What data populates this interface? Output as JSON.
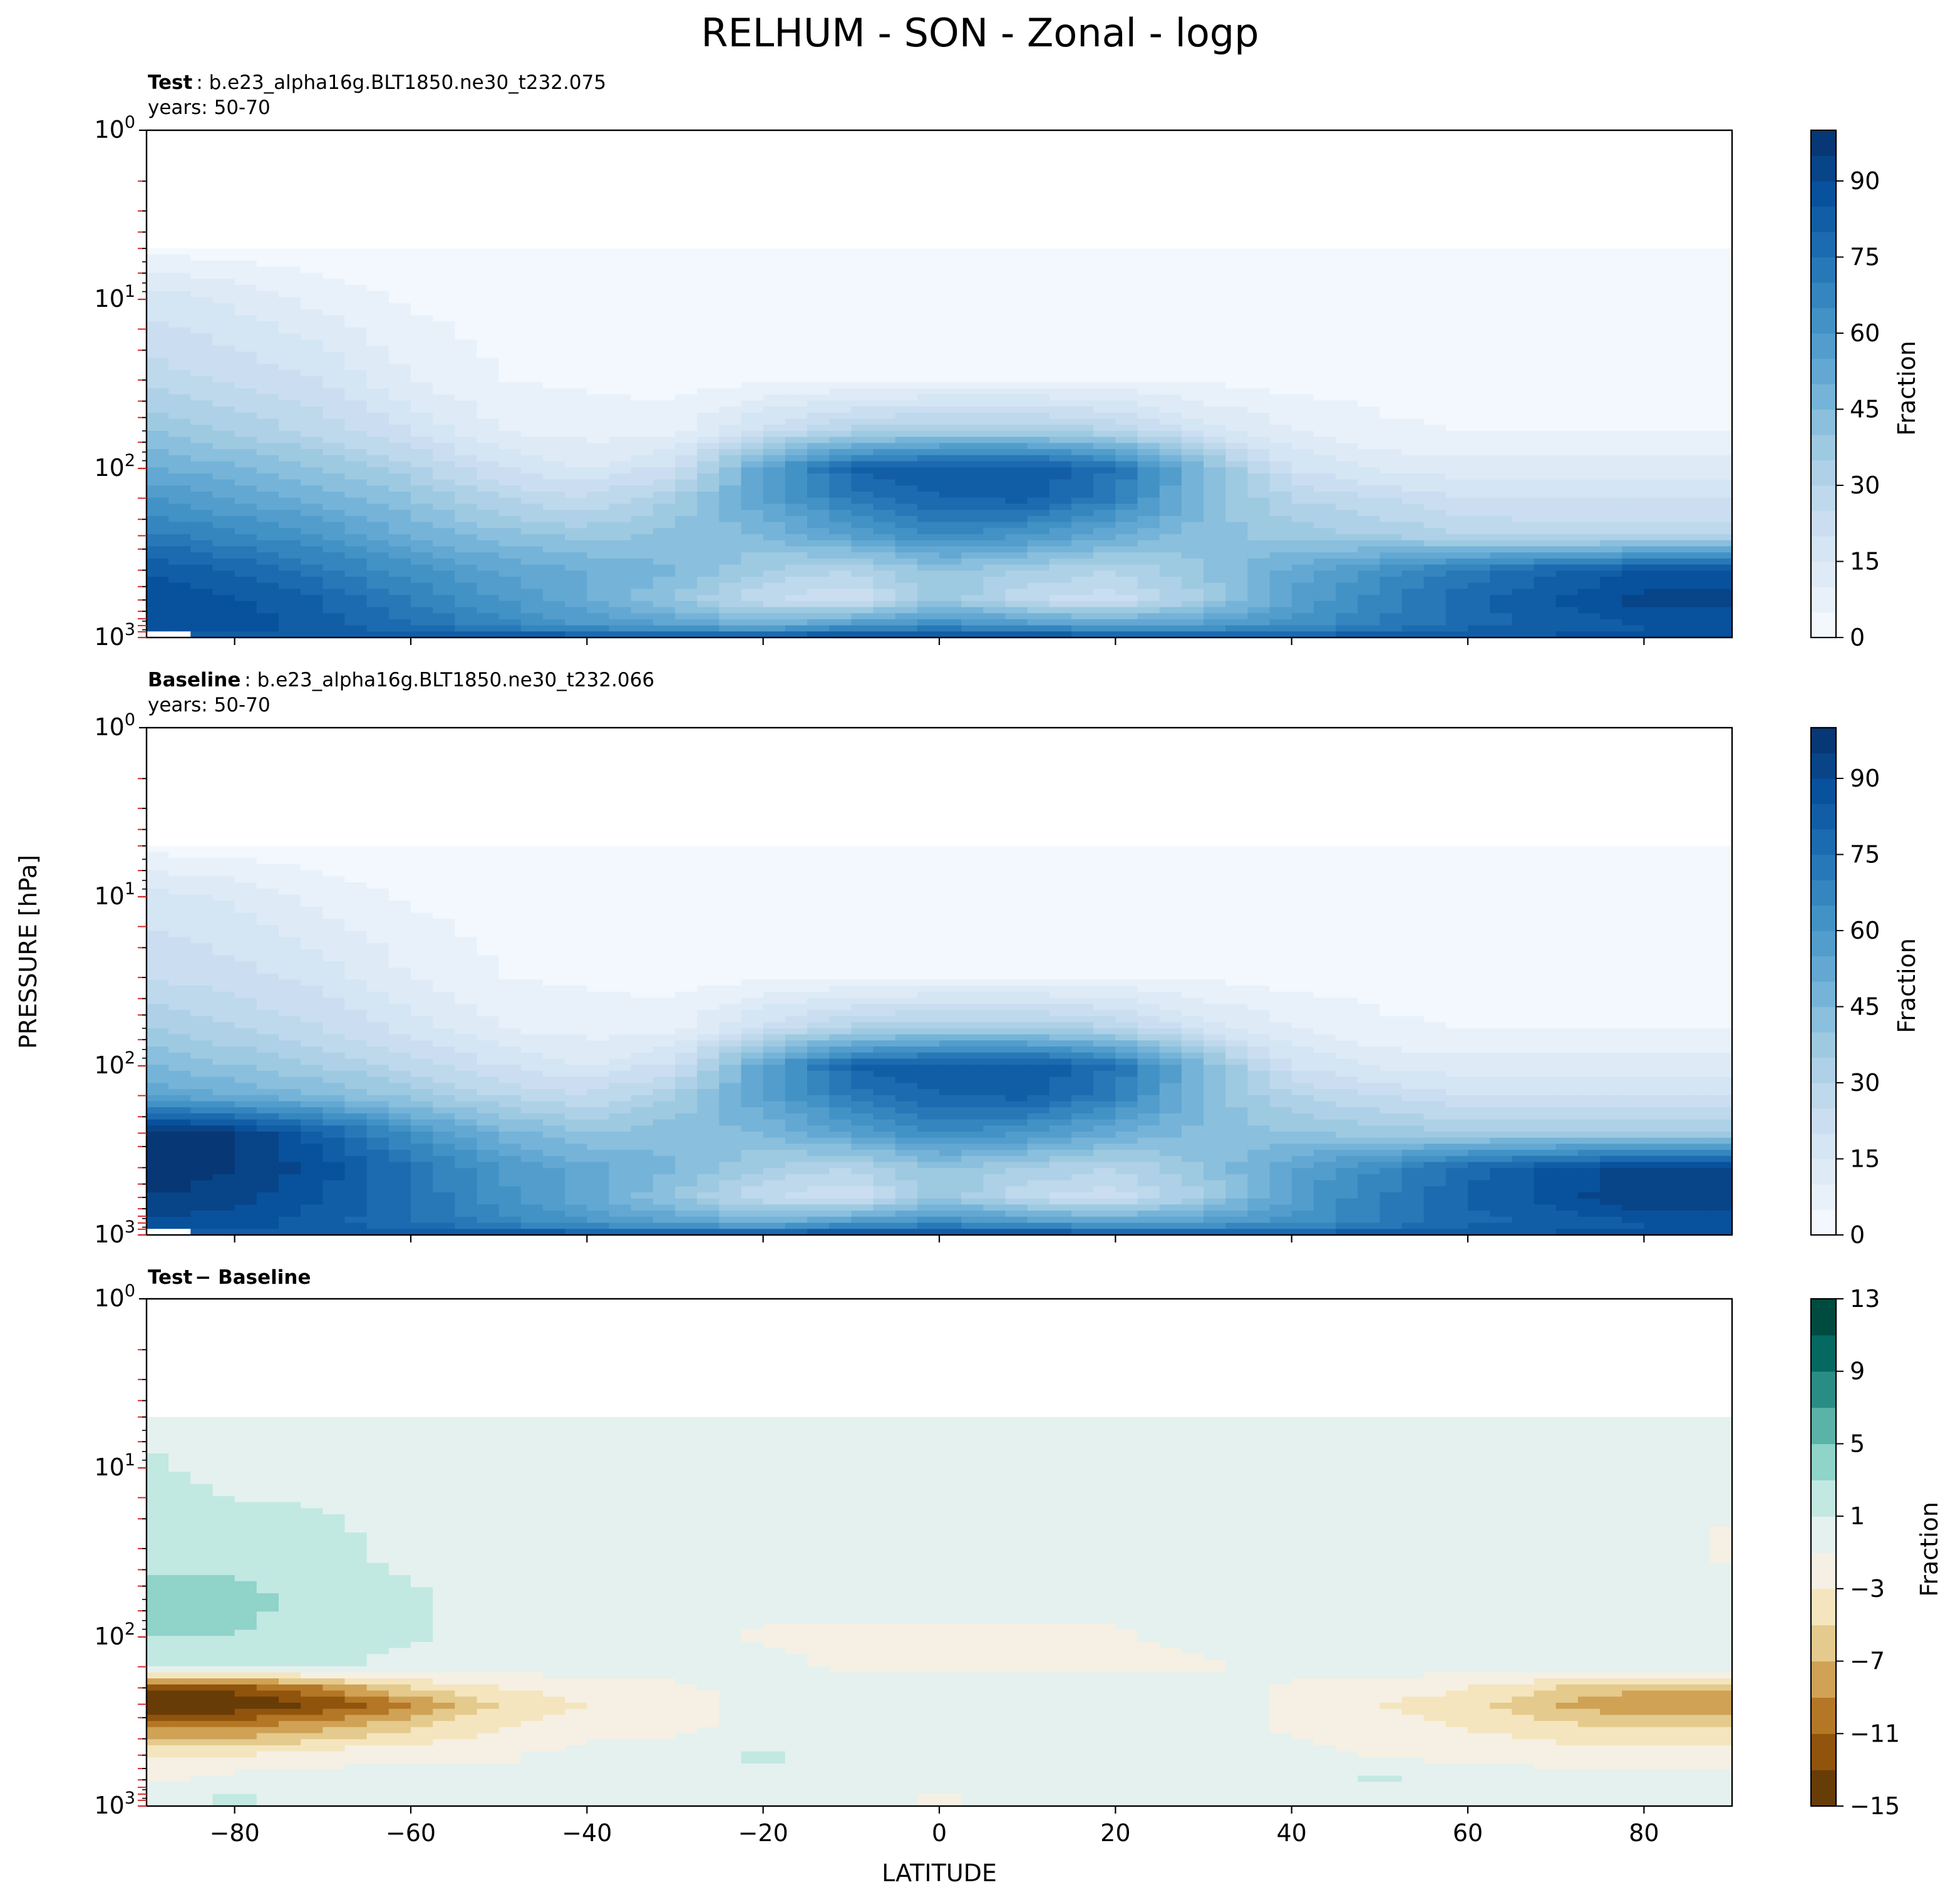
{
  "figure": {
    "title": "RELHUM - SON - Zonal - logp",
    "ylabel": "PRESSURE [hPa]",
    "xlabel": "LATITUDE"
  },
  "panels": [
    {
      "title_bold": "Test",
      "title_rest": ": b.e23_alpha16g.BLT1850.ne30_t232.075",
      "subtitle": "years: 50-70",
      "colorbar_label": "Fraction",
      "colorbar_ticks": [
        "0",
        "15",
        "30",
        "45",
        "60",
        "75",
        "90"
      ]
    },
    {
      "title_bold": "Baseline",
      "title_rest": ": b.e23_alpha16g.BLT1850.ne30_t232.066",
      "subtitle": "years: 50-70",
      "colorbar_label": "Fraction",
      "colorbar_ticks": [
        "0",
        "15",
        "30",
        "45",
        "60",
        "75",
        "90"
      ]
    },
    {
      "title_bold": "Test",
      "title_rest": "− Baseline",
      "subtitle": "",
      "colorbar_label": "Fraction",
      "colorbar_ticks": [
        "13",
        "9",
        "5",
        "1",
        "−3",
        "−7",
        "−11",
        "−15"
      ]
    }
  ],
  "chart_data": [
    {
      "type": "heatmap",
      "name": "Test",
      "x_axis": {
        "range": [
          -90,
          90
        ],
        "ticks": [
          -80,
          -60,
          -40,
          -20,
          0,
          20,
          40,
          60,
          80
        ],
        "tick_labels": [
          "−80",
          "−60",
          "−40",
          "−20",
          "0",
          "20",
          "40",
          "60",
          "80"
        ]
      },
      "y_axis": {
        "scale": "log",
        "inverted": true,
        "range_hpa": [
          1,
          1000
        ],
        "tick_labels": [
          "10^0",
          "10^1",
          "10^2",
          "10^3"
        ]
      },
      "colormap": "Blues",
      "levels": [
        0,
        5,
        10,
        15,
        20,
        25,
        30,
        35,
        40,
        45,
        50,
        55,
        60,
        65,
        70,
        75,
        80,
        85,
        90,
        95,
        100
      ],
      "latitudes": [
        -90,
        -80,
        -70,
        -60,
        -50,
        -40,
        -30,
        -20,
        -10,
        0,
        10,
        20,
        30,
        40,
        50,
        60,
        70,
        80,
        90
      ],
      "profiles": [
        {
          "pressure_hpa": 5,
          "values": [
            3,
            2,
            2,
            2,
            2,
            2,
            2,
            2,
            2,
            2,
            2,
            2,
            2,
            2,
            2,
            2,
            2,
            2,
            2
          ]
        },
        {
          "pressure_hpa": 10,
          "values": [
            18,
            14,
            8,
            4,
            3,
            2,
            2,
            2,
            2,
            2,
            2,
            2,
            2,
            2,
            2,
            2,
            2,
            2,
            2
          ]
        },
        {
          "pressure_hpa": 30,
          "values": [
            28,
            24,
            20,
            10,
            5,
            4,
            3,
            4,
            5,
            5,
            5,
            5,
            4,
            3,
            3,
            2,
            2,
            2,
            2
          ]
        },
        {
          "pressure_hpa": 60,
          "values": [
            40,
            34,
            28,
            20,
            10,
            8,
            8,
            22,
            32,
            35,
            35,
            30,
            18,
            10,
            6,
            5,
            5,
            5,
            5
          ]
        },
        {
          "pressure_hpa": 100,
          "values": [
            50,
            46,
            40,
            32,
            20,
            15,
            22,
            55,
            80,
            85,
            85,
            75,
            45,
            20,
            14,
            12,
            12,
            12,
            12
          ]
        },
        {
          "pressure_hpa": 150,
          "values": [
            60,
            55,
            48,
            40,
            30,
            25,
            35,
            55,
            72,
            80,
            82,
            70,
            45,
            30,
            25,
            20,
            20,
            20,
            20
          ]
        },
        {
          "pressure_hpa": 250,
          "values": [
            72,
            66,
            60,
            50,
            42,
            38,
            42,
            45,
            55,
            65,
            60,
            50,
            42,
            38,
            35,
            30,
            28,
            28,
            28
          ]
        },
        {
          "pressure_hpa": 400,
          "values": [
            85,
            80,
            72,
            62,
            55,
            50,
            45,
            35,
            30,
            40,
            35,
            30,
            40,
            52,
            62,
            72,
            80,
            85,
            85
          ]
        },
        {
          "pressure_hpa": 600,
          "values": [
            90,
            86,
            80,
            70,
            60,
            50,
            40,
            25,
            20,
            40,
            25,
            22,
            35,
            55,
            68,
            78,
            85,
            92,
            92
          ]
        },
        {
          "pressure_hpa": 850,
          "values": [
            85,
            88,
            82,
            75,
            68,
            60,
            55,
            50,
            60,
            65,
            60,
            55,
            58,
            62,
            70,
            78,
            82,
            85,
            85
          ]
        },
        {
          "pressure_hpa": 1000,
          "values": [
            null,
            82,
            85,
            86,
            86,
            86,
            86,
            85,
            90,
            92,
            90,
            86,
            85,
            85,
            85,
            86,
            86,
            86,
            86
          ]
        }
      ]
    },
    {
      "type": "heatmap",
      "name": "Baseline",
      "x_axis": {
        "range": [
          -90,
          90
        ],
        "ticks": [
          -80,
          -60,
          -40,
          -20,
          0,
          20,
          40,
          60,
          80
        ],
        "tick_labels": [
          "−80",
          "−60",
          "−40",
          "−20",
          "0",
          "20",
          "40",
          "60",
          "80"
        ]
      },
      "y_axis": {
        "scale": "log",
        "inverted": true,
        "range_hpa": [
          1,
          1000
        ],
        "tick_labels": [
          "10^0",
          "10^1",
          "10^2",
          "10^3"
        ]
      },
      "colormap": "Blues",
      "levels": [
        0,
        5,
        10,
        15,
        20,
        25,
        30,
        35,
        40,
        45,
        50,
        55,
        60,
        65,
        70,
        75,
        80,
        85,
        90,
        95,
        100
      ],
      "latitudes": [
        -90,
        -80,
        -70,
        -60,
        -50,
        -40,
        -30,
        -20,
        -10,
        0,
        10,
        20,
        30,
        40,
        50,
        60,
        70,
        80,
        90
      ],
      "profiles": [
        {
          "pressure_hpa": 5,
          "values": [
            3,
            2,
            2,
            2,
            2,
            2,
            2,
            2,
            2,
            2,
            2,
            2,
            2,
            2,
            2,
            2,
            2,
            2,
            2
          ]
        },
        {
          "pressure_hpa": 10,
          "values": [
            17,
            14,
            8,
            4,
            3,
            2,
            2,
            2,
            2,
            2,
            2,
            2,
            2,
            2,
            2,
            2,
            2,
            2,
            2
          ]
        },
        {
          "pressure_hpa": 30,
          "values": [
            25,
            22,
            18,
            10,
            5,
            4,
            3,
            4,
            5,
            5,
            5,
            5,
            4,
            3,
            3,
            2,
            2,
            2,
            2
          ]
        },
        {
          "pressure_hpa": 60,
          "values": [
            35,
            30,
            25,
            18,
            10,
            8,
            8,
            22,
            32,
            35,
            35,
            30,
            18,
            10,
            6,
            5,
            5,
            5,
            5
          ]
        },
        {
          "pressure_hpa": 100,
          "values": [
            45,
            40,
            35,
            28,
            20,
            15,
            22,
            55,
            80,
            85,
            85,
            75,
            45,
            20,
            14,
            12,
            12,
            12,
            12
          ]
        },
        {
          "pressure_hpa": 150,
          "values": [
            55,
            50,
            45,
            38,
            30,
            25,
            35,
            55,
            72,
            80,
            82,
            70,
            45,
            30,
            25,
            20,
            20,
            20,
            20
          ]
        },
        {
          "pressure_hpa": 250,
          "values": [
            100,
            95,
            82,
            62,
            48,
            40,
            43,
            45,
            55,
            65,
            60,
            50,
            43,
            40,
            38,
            35,
            35,
            35,
            35
          ]
        },
        {
          "pressure_hpa": 400,
          "values": [
            100,
            95,
            88,
            75,
            60,
            52,
            45,
            35,
            30,
            40,
            35,
            30,
            40,
            55,
            65,
            78,
            86,
            92,
            92
          ]
        },
        {
          "pressure_hpa": 600,
          "values": [
            95,
            92,
            85,
            75,
            62,
            52,
            40,
            25,
            20,
            40,
            25,
            22,
            35,
            56,
            70,
            80,
            88,
            95,
            95
          ]
        },
        {
          "pressure_hpa": 850,
          "values": [
            88,
            88,
            82,
            75,
            68,
            60,
            55,
            50,
            60,
            65,
            60,
            55,
            58,
            62,
            70,
            78,
            82,
            85,
            85
          ]
        },
        {
          "pressure_hpa": 1000,
          "values": [
            null,
            84,
            85,
            86,
            86,
            86,
            86,
            85,
            90,
            92,
            90,
            86,
            85,
            85,
            85,
            86,
            86,
            86,
            86
          ]
        }
      ]
    },
    {
      "type": "heatmap",
      "name": "Test − Baseline",
      "x_axis": {
        "range": [
          -90,
          90
        ],
        "ticks": [
          -80,
          -60,
          -40,
          -20,
          0,
          20,
          40,
          60,
          80
        ],
        "tick_labels": [
          "−80",
          "−60",
          "−40",
          "−20",
          "0",
          "20",
          "40",
          "60",
          "80"
        ]
      },
      "y_axis": {
        "scale": "log",
        "inverted": true,
        "range_hpa": [
          1,
          1000
        ],
        "tick_labels": [
          "10^0",
          "10^1",
          "10^2",
          "10^3"
        ]
      },
      "colormap": "BrBG",
      "levels": [
        -15,
        -13,
        -11,
        -9,
        -7,
        -5,
        -3,
        -1,
        1,
        3,
        5,
        7,
        9,
        11,
        13
      ],
      "latitudes": [
        -90,
        -80,
        -70,
        -60,
        -50,
        -40,
        -30,
        -20,
        -10,
        0,
        10,
        20,
        30,
        40,
        50,
        60,
        70,
        80,
        90
      ],
      "profiles": [
        {
          "pressure_hpa": 5,
          "values": [
            0,
            0,
            0,
            0,
            0,
            0,
            0,
            0,
            0,
            0,
            0,
            0,
            0,
            0,
            0,
            0,
            0,
            0,
            0
          ]
        },
        {
          "pressure_hpa": 10,
          "values": [
            1.5,
            0,
            0,
            0,
            0,
            0,
            0,
            0,
            0,
            0,
            0,
            0,
            0,
            0,
            0,
            0,
            0,
            0,
            0
          ]
        },
        {
          "pressure_hpa": 30,
          "values": [
            2.5,
            2.5,
            2,
            0,
            0,
            0,
            0,
            0,
            0,
            0,
            0,
            0,
            0,
            0,
            0,
            0,
            0,
            0,
            -1.5
          ]
        },
        {
          "pressure_hpa": 60,
          "values": [
            3.5,
            3.5,
            2.5,
            1.5,
            0,
            0,
            0,
            0,
            0,
            0,
            0,
            0,
            0,
            0,
            0,
            0,
            0,
            0,
            0
          ]
        },
        {
          "pressure_hpa": 100,
          "values": [
            3,
            3,
            2,
            1.5,
            0,
            0,
            0,
            -1.5,
            -1.5,
            -1.5,
            -1.5,
            -1.5,
            0,
            0,
            0,
            0,
            0,
            0,
            0
          ]
        },
        {
          "pressure_hpa": 150,
          "values": [
            2,
            1.5,
            1.5,
            0,
            0,
            0,
            0,
            0,
            -1.5,
            -1.5,
            -1.5,
            -1.5,
            -1.5,
            0,
            0,
            0,
            0,
            0,
            0
          ]
        },
        {
          "pressure_hpa": 200,
          "values": [
            -12,
            -12,
            -9,
            -5,
            -3,
            -2,
            -1.5,
            0,
            0,
            0,
            0,
            0,
            0,
            -1.5,
            -2,
            -3,
            -5,
            -7,
            -7
          ]
        },
        {
          "pressure_hpa": 250,
          "values": [
            -15,
            -15,
            -13,
            -9,
            -5,
            -3,
            -2,
            0,
            0,
            0,
            0,
            0,
            0,
            -1.5,
            -3,
            -4,
            -7,
            -9,
            -9
          ]
        },
        {
          "pressure_hpa": 350,
          "values": [
            -9,
            -9,
            -7,
            -5,
            -3,
            -2,
            -1.5,
            0,
            0,
            0,
            0,
            0,
            0,
            -1.5,
            -2,
            -3,
            -4,
            -5,
            -5
          ]
        },
        {
          "pressure_hpa": 500,
          "values": [
            -3,
            -3,
            -2,
            -1.5,
            -1.5,
            0,
            0,
            1.5,
            0,
            0,
            0,
            0,
            0,
            0,
            -1.5,
            -1.5,
            -2,
            -2,
            -2
          ]
        },
        {
          "pressure_hpa": 700,
          "values": [
            -1.5,
            0,
            0,
            0,
            0,
            0,
            0,
            0,
            0,
            0,
            0,
            0,
            0,
            0,
            1.5,
            0,
            0,
            0,
            0
          ]
        },
        {
          "pressure_hpa": 900,
          "values": [
            0,
            1.5,
            0,
            0,
            0,
            0,
            0,
            0,
            0,
            -1.5,
            0,
            0,
            0,
            0,
            0,
            0,
            0,
            0,
            0
          ]
        }
      ]
    }
  ]
}
